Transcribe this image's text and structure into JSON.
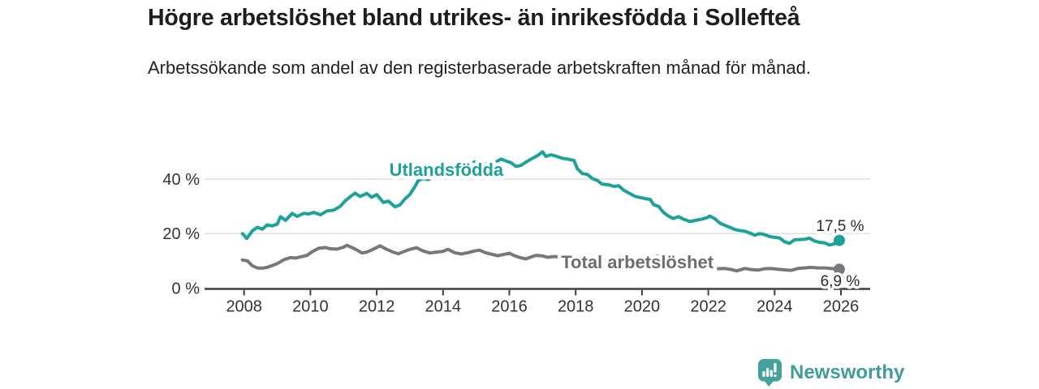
{
  "header": {
    "title": "Högre arbetslöshet bland utrikes- än inrikesfödda i Sollefteå",
    "subtitle": "Arbetssökande som andel av den registerbaserade arbetskraften månad för månad."
  },
  "footer": {
    "brand": "Newsworthy"
  },
  "colors": {
    "accent_teal": "#1CA29A",
    "series_gray": "#77777C",
    "series_label_gray": "#6C6C72",
    "text_dark": "#1D1D1D",
    "axis_dark": "#3F3F3F",
    "gridline_gray": "#DCDCDC",
    "brand_teal": "#3F9D98",
    "background": "#FFFFFF"
  },
  "chart_data": {
    "type": "line",
    "title": "Högre arbetslöshet bland utrikes- än inrikesfödda i Sollefteå",
    "subtitle": "Arbetssökande som andel av den registerbaserade arbetskraften månad för månad.",
    "xlabel": "",
    "ylabel": "",
    "unit": "%",
    "grid": "horizontal",
    "legend_position": "inline-labels",
    "xlim": [
      2007.8,
      2026.9
    ],
    "ylim": [
      0,
      52
    ],
    "x_ticks": [
      2008,
      2010,
      2012,
      2014,
      2016,
      2018,
      2020,
      2022,
      2024,
      2026
    ],
    "x_tick_labels": [
      "2008",
      "2010",
      "2012",
      "2014",
      "2016",
      "2018",
      "2020",
      "2022",
      "2024",
      "2026"
    ],
    "y_ticks": [
      0,
      20,
      40
    ],
    "y_tick_labels": [
      "0 %",
      "20 %",
      "40 %"
    ],
    "series": [
      {
        "name": "Utlandsfödda",
        "color": "#1CA29A",
        "label_color": "#1CA29A",
        "end_label": "17,5 %",
        "end_value": 17.5,
        "end_label_side": "above",
        "label_pos": {
          "x": 2014.1,
          "y": 41.2
        },
        "points": [
          [
            2007.95,
            20.0
          ],
          [
            2008.08,
            18.2
          ],
          [
            2008.25,
            21.0
          ],
          [
            2008.4,
            22.3
          ],
          [
            2008.55,
            21.6
          ],
          [
            2008.7,
            23.2
          ],
          [
            2008.85,
            22.8
          ],
          [
            2009.0,
            23.5
          ],
          [
            2009.1,
            26.2
          ],
          [
            2009.25,
            24.8
          ],
          [
            2009.45,
            27.4
          ],
          [
            2009.6,
            26.3
          ],
          [
            2009.8,
            27.4
          ],
          [
            2009.95,
            27.2
          ],
          [
            2010.1,
            27.8
          ],
          [
            2010.3,
            26.9
          ],
          [
            2010.5,
            28.3
          ],
          [
            2010.7,
            28.6
          ],
          [
            2010.9,
            30.0
          ],
          [
            2011.05,
            32.0
          ],
          [
            2011.2,
            33.5
          ],
          [
            2011.35,
            34.8
          ],
          [
            2011.5,
            33.6
          ],
          [
            2011.7,
            34.7
          ],
          [
            2011.85,
            33.3
          ],
          [
            2012.0,
            34.3
          ],
          [
            2012.2,
            31.4
          ],
          [
            2012.35,
            31.9
          ],
          [
            2012.55,
            29.8
          ],
          [
            2012.7,
            30.5
          ],
          [
            2012.85,
            32.7
          ],
          [
            2013.0,
            34.3
          ],
          [
            2013.15,
            37.2
          ],
          [
            2013.25,
            39.4
          ],
          [
            2013.4,
            40.2
          ],
          [
            2013.55,
            39.8
          ],
          [
            2013.7,
            40.8
          ],
          [
            2013.85,
            41.5
          ],
          [
            2014.0,
            42.3
          ],
          [
            2014.2,
            42.0
          ],
          [
            2014.4,
            43.3
          ],
          [
            2014.6,
            44.3
          ],
          [
            2014.8,
            45.8
          ],
          [
            2015.0,
            46.3
          ],
          [
            2015.2,
            45.4
          ],
          [
            2015.4,
            45.9
          ],
          [
            2015.6,
            46.3
          ],
          [
            2015.75,
            47.3
          ],
          [
            2015.9,
            46.6
          ],
          [
            2016.05,
            46.0
          ],
          [
            2016.2,
            44.6
          ],
          [
            2016.35,
            45.0
          ],
          [
            2016.5,
            46.2
          ],
          [
            2016.7,
            47.6
          ],
          [
            2016.85,
            48.6
          ],
          [
            2017.0,
            50.0
          ],
          [
            2017.1,
            48.3
          ],
          [
            2017.25,
            48.9
          ],
          [
            2017.4,
            48.4
          ],
          [
            2017.6,
            47.6
          ],
          [
            2017.8,
            47.2
          ],
          [
            2017.95,
            46.8
          ],
          [
            2018.05,
            43.8
          ],
          [
            2018.2,
            42.0
          ],
          [
            2018.35,
            41.7
          ],
          [
            2018.5,
            40.2
          ],
          [
            2018.65,
            39.5
          ],
          [
            2018.8,
            38.1
          ],
          [
            2019.0,
            37.9
          ],
          [
            2019.15,
            37.3
          ],
          [
            2019.3,
            37.5
          ],
          [
            2019.45,
            35.9
          ],
          [
            2019.6,
            34.9
          ],
          [
            2019.8,
            33.6
          ],
          [
            2019.95,
            33.2
          ],
          [
            2020.1,
            32.8
          ],
          [
            2020.25,
            32.5
          ],
          [
            2020.35,
            30.6
          ],
          [
            2020.5,
            30.0
          ],
          [
            2020.65,
            27.7
          ],
          [
            2020.8,
            26.4
          ],
          [
            2020.95,
            25.5
          ],
          [
            2021.1,
            26.2
          ],
          [
            2021.25,
            25.3
          ],
          [
            2021.45,
            24.4
          ],
          [
            2021.6,
            24.8
          ],
          [
            2021.8,
            25.3
          ],
          [
            2021.95,
            25.8
          ],
          [
            2022.05,
            26.4
          ],
          [
            2022.2,
            25.4
          ],
          [
            2022.35,
            23.8
          ],
          [
            2022.5,
            23.0
          ],
          [
            2022.65,
            22.3
          ],
          [
            2022.8,
            21.5
          ],
          [
            2022.95,
            21.1
          ],
          [
            2023.1,
            20.9
          ],
          [
            2023.25,
            20.2
          ],
          [
            2023.4,
            19.4
          ],
          [
            2023.55,
            20.0
          ],
          [
            2023.7,
            19.6
          ],
          [
            2023.85,
            18.9
          ],
          [
            2024.0,
            18.6
          ],
          [
            2024.15,
            18.4
          ],
          [
            2024.3,
            17.0
          ],
          [
            2024.45,
            16.4
          ],
          [
            2024.6,
            17.7
          ],
          [
            2024.75,
            17.8
          ],
          [
            2024.9,
            17.9
          ],
          [
            2025.05,
            18.3
          ],
          [
            2025.2,
            17.3
          ],
          [
            2025.35,
            16.8
          ],
          [
            2025.5,
            16.6
          ],
          [
            2025.65,
            15.8
          ],
          [
            2025.8,
            16.2
          ],
          [
            2025.95,
            17.5
          ]
        ]
      },
      {
        "name": "Total arbetslöshet",
        "color": "#77777C",
        "label_color": "#6C6C72",
        "end_label": "6,9 %",
        "end_value": 6.9,
        "end_label_side": "below",
        "label_pos": {
          "x": 2019.86,
          "y": 7.3
        },
        "points": [
          [
            2007.95,
            10.3
          ],
          [
            2008.1,
            10.0
          ],
          [
            2008.25,
            8.2
          ],
          [
            2008.4,
            7.4
          ],
          [
            2008.55,
            7.3
          ],
          [
            2008.7,
            7.6
          ],
          [
            2008.85,
            8.3
          ],
          [
            2009.0,
            9.0
          ],
          [
            2009.2,
            10.4
          ],
          [
            2009.4,
            11.2
          ],
          [
            2009.55,
            11.0
          ],
          [
            2009.7,
            11.4
          ],
          [
            2009.9,
            12.0
          ],
          [
            2010.05,
            13.3
          ],
          [
            2010.25,
            14.6
          ],
          [
            2010.45,
            14.9
          ],
          [
            2010.6,
            14.4
          ],
          [
            2010.8,
            14.3
          ],
          [
            2011.0,
            15.0
          ],
          [
            2011.1,
            15.7
          ],
          [
            2011.25,
            14.9
          ],
          [
            2011.4,
            14.0
          ],
          [
            2011.55,
            12.9
          ],
          [
            2011.7,
            13.2
          ],
          [
            2011.85,
            14.0
          ],
          [
            2012.0,
            14.9
          ],
          [
            2012.1,
            15.5
          ],
          [
            2012.3,
            14.2
          ],
          [
            2012.5,
            13.2
          ],
          [
            2012.65,
            12.6
          ],
          [
            2012.8,
            13.3
          ],
          [
            2013.0,
            14.2
          ],
          [
            2013.2,
            14.8
          ],
          [
            2013.4,
            13.6
          ],
          [
            2013.6,
            12.9
          ],
          [
            2013.8,
            13.2
          ],
          [
            2014.0,
            13.5
          ],
          [
            2014.15,
            14.2
          ],
          [
            2014.35,
            13.0
          ],
          [
            2014.55,
            12.5
          ],
          [
            2014.75,
            13.0
          ],
          [
            2014.95,
            13.6
          ],
          [
            2015.1,
            13.9
          ],
          [
            2015.3,
            12.9
          ],
          [
            2015.5,
            12.3
          ],
          [
            2015.65,
            11.9
          ],
          [
            2015.85,
            12.4
          ],
          [
            2016.0,
            12.8
          ],
          [
            2016.15,
            11.9
          ],
          [
            2016.35,
            11.1
          ],
          [
            2016.5,
            10.7
          ],
          [
            2016.65,
            11.4
          ],
          [
            2016.8,
            12.0
          ],
          [
            2017.0,
            11.8
          ],
          [
            2017.15,
            11.3
          ],
          [
            2017.35,
            11.6
          ],
          [
            2017.5,
            11.4
          ],
          [
            2017.8,
            11.0
          ],
          [
            2018.1,
            10.6
          ],
          [
            2018.4,
            10.2
          ],
          [
            2018.7,
            10.0
          ],
          [
            2019.0,
            10.3
          ],
          [
            2019.3,
            9.9
          ],
          [
            2019.6,
            9.7
          ],
          [
            2019.9,
            10.1
          ],
          [
            2020.2,
            10.8
          ],
          [
            2020.45,
            11.8
          ],
          [
            2020.7,
            11.4
          ],
          [
            2021.0,
            10.7
          ],
          [
            2021.3,
            9.9
          ],
          [
            2021.6,
            9.2
          ],
          [
            2021.9,
            8.4
          ],
          [
            2022.1,
            7.6
          ],
          [
            2022.3,
            7.1
          ],
          [
            2022.5,
            7.2
          ],
          [
            2022.7,
            6.8
          ],
          [
            2022.85,
            6.3
          ],
          [
            2023.1,
            7.2
          ],
          [
            2023.3,
            6.8
          ],
          [
            2023.5,
            6.6
          ],
          [
            2023.7,
            7.1
          ],
          [
            2023.9,
            7.2
          ],
          [
            2024.1,
            6.9
          ],
          [
            2024.3,
            6.7
          ],
          [
            2024.5,
            6.5
          ],
          [
            2024.7,
            7.2
          ],
          [
            2024.9,
            7.4
          ],
          [
            2025.1,
            7.6
          ],
          [
            2025.3,
            7.4
          ],
          [
            2025.5,
            7.4
          ],
          [
            2025.7,
            7.2
          ],
          [
            2025.95,
            6.9
          ]
        ]
      }
    ]
  }
}
